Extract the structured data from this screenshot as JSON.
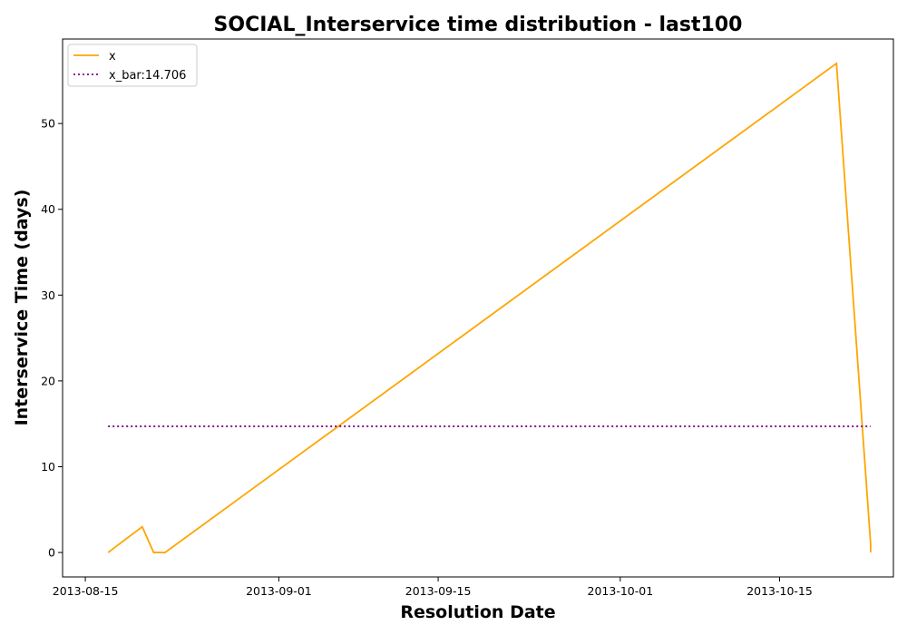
{
  "chart_data": {
    "type": "line",
    "title": "SOCIAL_Interservice time distribution - last100",
    "xlabel": "Resolution Date",
    "ylabel": "Interservice Time (days)",
    "x_axis_type": "date",
    "xlim": [
      "2013-08-13",
      "2013-10-25"
    ],
    "ylim": [
      -2.85,
      59.85
    ],
    "x_ticks": [
      "2013-08-15",
      "2013-09-01",
      "2013-09-15",
      "2013-10-01",
      "2013-10-15"
    ],
    "y_ticks": [
      0,
      10,
      20,
      30,
      40,
      50
    ],
    "grid": false,
    "legend_position": "upper-left",
    "series": [
      {
        "name": "x",
        "color": "#ffa500",
        "line_style": "solid",
        "x": [
          "2013-08-17",
          "2013-08-20",
          "2013-08-21",
          "2013-08-22",
          "2013-10-20",
          "2013-10-23",
          "2013-10-23"
        ],
        "y": [
          0,
          3,
          0,
          0,
          57,
          1,
          0
        ]
      },
      {
        "name": "x_bar:14.706",
        "color": "#800080",
        "line_style": "dotted",
        "x": [
          "2013-08-17",
          "2013-10-23"
        ],
        "y": [
          14.706,
          14.706
        ]
      }
    ]
  }
}
